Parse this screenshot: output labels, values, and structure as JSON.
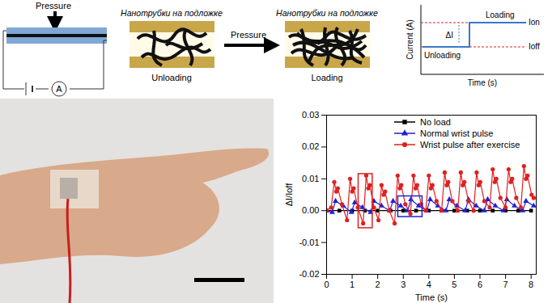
{
  "diagram": {
    "schematic": {
      "pressure_label": "Pressure",
      "meter_label": "A"
    },
    "nanotube_panels": [
      {
        "caption": "Нанотрубки на подложке",
        "state": "Unloading"
      },
      {
        "caption": "Нанотрубки на подложке",
        "state": "Loading"
      }
    ],
    "arrow_label": "Pressure",
    "current_plot": {
      "y_label": "Current (A)",
      "x_label": "Time (s)",
      "upper_label": "Loading",
      "lower_label": "Unloading",
      "on_label": "Ion",
      "off_label": "Ioff",
      "delta_label": "ΔI"
    }
  },
  "chart_data": {
    "type": "line",
    "x_label": "Time (s)",
    "y_label": "ΔI/Ioff",
    "xlim": [
      0,
      8.2
    ],
    "xticks": [
      0,
      1,
      2,
      3,
      4,
      5,
      6,
      7,
      8
    ],
    "ylim": [
      -0.02,
      0.03
    ],
    "yticks": [
      -0.02,
      -0.01,
      {
        "value": 0,
        "label": "0.00"
      },
      0.01,
      0.02,
      0.03
    ],
    "legend": "top",
    "series": [
      {
        "name": "No load",
        "color": "#000000",
        "marker": "square",
        "line_style": "solid",
        "x": [
          0,
          0.5,
          1,
          1.5,
          2,
          2.5,
          3,
          3.5,
          4,
          4.5,
          5,
          5.5,
          6,
          6.5,
          7,
          7.5,
          8
        ],
        "values": [
          0,
          0,
          0,
          0,
          0,
          0,
          0,
          0,
          0,
          0,
          0,
          0,
          0,
          0,
          0,
          0,
          0
        ]
      },
      {
        "name": "Normal wrist pulse",
        "color": "#2020d0",
        "marker": "triangle",
        "line_style": "solid",
        "x": [
          0,
          0.22,
          0.35,
          0.65,
          0.97,
          1.1,
          1.4,
          1.72,
          1.85,
          2.15,
          2.47,
          2.6,
          2.9,
          3.17,
          3.3,
          3.6,
          3.92,
          4.05,
          4.35,
          4.67,
          4.8,
          5.1,
          5.42,
          5.55,
          5.85,
          6.17,
          6.3,
          6.6,
          6.92,
          7.05,
          7.35,
          7.67,
          7.8,
          8.1
        ],
        "values": [
          0,
          -0.0005,
          0.003,
          0.0015,
          -0.0005,
          0.0025,
          0.001,
          -0.0005,
          0.003,
          0.0015,
          0,
          0.003,
          0.0015,
          0,
          0.0035,
          0.0015,
          0,
          0.0035,
          0.0015,
          0,
          0.0035,
          0.0015,
          0,
          0.0035,
          0.0015,
          0,
          0.0035,
          0.0015,
          0,
          0.0035,
          0.0015,
          0,
          0.003,
          0.0015
        ]
      },
      {
        "name": "Wrist pulse after exercise",
        "color": "#e02020",
        "marker": "circle",
        "line_style": "solid",
        "x": [
          0,
          0.18,
          0.3,
          0.38,
          0.44,
          0.6,
          0.8,
          0.92,
          1.0,
          1.06,
          1.22,
          1.43,
          1.55,
          1.63,
          1.69,
          1.85,
          2.03,
          2.15,
          2.23,
          2.29,
          2.45,
          2.66,
          2.78,
          2.86,
          2.92,
          3.08,
          3.28,
          3.4,
          3.48,
          3.54,
          3.7,
          3.88,
          4.0,
          4.08,
          4.14,
          4.3,
          4.5,
          4.62,
          4.7,
          4.76,
          4.92,
          5.13,
          5.25,
          5.33,
          5.39,
          5.55,
          5.75,
          5.87,
          5.95,
          6.01,
          6.17,
          6.38,
          6.5,
          6.58,
          6.64,
          6.8,
          7.0,
          7.12,
          7.2,
          7.26,
          7.42,
          7.6,
          7.72,
          7.8,
          7.86,
          8.02,
          8.1
        ],
        "values": [
          0,
          0.001,
          0.009,
          0.006,
          0.007,
          0.002,
          -0.003,
          0.01,
          0.006,
          0.007,
          0.001,
          -0.004,
          0.011,
          0.007,
          0.008,
          0.001,
          -0.003,
          0.008,
          0.005,
          0.006,
          0,
          -0.004,
          0.011,
          0.007,
          0.008,
          0.002,
          -0.001,
          0.011,
          0.007,
          0.008,
          0.002,
          0,
          0.011,
          0.007,
          0.008,
          0.003,
          0,
          0.012,
          0.008,
          0.009,
          0.003,
          0,
          0.012,
          0.008,
          0.009,
          0.003,
          0,
          0.012,
          0.008,
          0.009,
          0.003,
          0.001,
          0.013,
          0.009,
          0.01,
          0.004,
          0.001,
          0.013,
          0.009,
          0.01,
          0.004,
          0.001,
          0.014,
          0.01,
          0.011,
          0.005,
          0.004
        ]
      }
    ],
    "highlight_boxes": [
      {
        "x1": 1.25,
        "x2": 1.8,
        "y1": -0.0055,
        "y2": 0.0115,
        "color": "#e02020"
      },
      {
        "x1": 2.8,
        "x2": 3.75,
        "y1": -0.002,
        "y2": 0.0045,
        "color": "#2020d0"
      }
    ]
  }
}
